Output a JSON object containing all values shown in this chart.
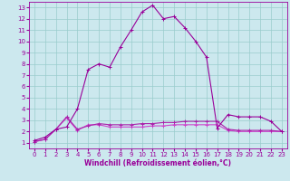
{
  "xlabel": "Windchill (Refroidissement éolien,°C)",
  "bg_color": "#cce8ee",
  "line_color1": "#990099",
  "line_color2": "#aa22aa",
  "line_color3": "#cc44cc",
  "grid_color": "#99cccc",
  "xlim": [
    -0.5,
    23.5
  ],
  "ylim": [
    0.5,
    13.5
  ],
  "xticks": [
    0,
    1,
    2,
    3,
    4,
    5,
    6,
    7,
    8,
    9,
    10,
    11,
    12,
    13,
    14,
    15,
    16,
    17,
    18,
    19,
    20,
    21,
    22,
    23
  ],
  "yticks": [
    1,
    2,
    3,
    4,
    5,
    6,
    7,
    8,
    9,
    10,
    11,
    12,
    13
  ],
  "line1_x": [
    0,
    1,
    2,
    3,
    4,
    5,
    6,
    7,
    8,
    9,
    10,
    11,
    12,
    13,
    14,
    15,
    16,
    17,
    18,
    19,
    20,
    21,
    22,
    23
  ],
  "line1_y": [
    1.2,
    1.5,
    2.2,
    2.4,
    4.0,
    7.5,
    8.0,
    7.7,
    9.5,
    11.0,
    12.6,
    13.2,
    12.0,
    12.2,
    11.2,
    10.0,
    8.6,
    2.3,
    3.5,
    3.3,
    3.3,
    3.3,
    2.9,
    2.0
  ],
  "line2_x": [
    0,
    1,
    2,
    3,
    4,
    5,
    6,
    7,
    8,
    9,
    10,
    11,
    12,
    13,
    14,
    15,
    16,
    17,
    18,
    19,
    20,
    21,
    22,
    23
  ],
  "line2_y": [
    1.1,
    1.3,
    2.2,
    3.3,
    2.2,
    2.5,
    2.7,
    2.6,
    2.6,
    2.6,
    2.7,
    2.7,
    2.8,
    2.8,
    2.9,
    2.9,
    2.9,
    2.9,
    2.2,
    2.1,
    2.1,
    2.1,
    2.1,
    2.0
  ],
  "line3_x": [
    0,
    1,
    2,
    3,
    4,
    5,
    6,
    7,
    8,
    9,
    10,
    11,
    12,
    13,
    14,
    15,
    16,
    17,
    18,
    19,
    20,
    21,
    22,
    23
  ],
  "line3_y": [
    1.1,
    1.3,
    2.2,
    3.2,
    2.1,
    2.6,
    2.6,
    2.4,
    2.4,
    2.4,
    2.4,
    2.5,
    2.5,
    2.6,
    2.6,
    2.6,
    2.6,
    2.6,
    2.1,
    2.0,
    2.0,
    2.0,
    2.0,
    2.0
  ],
  "marker": "+",
  "markersize": 3,
  "linewidth": 0.8,
  "tick_fontsize": 5,
  "label_fontsize": 5.5
}
